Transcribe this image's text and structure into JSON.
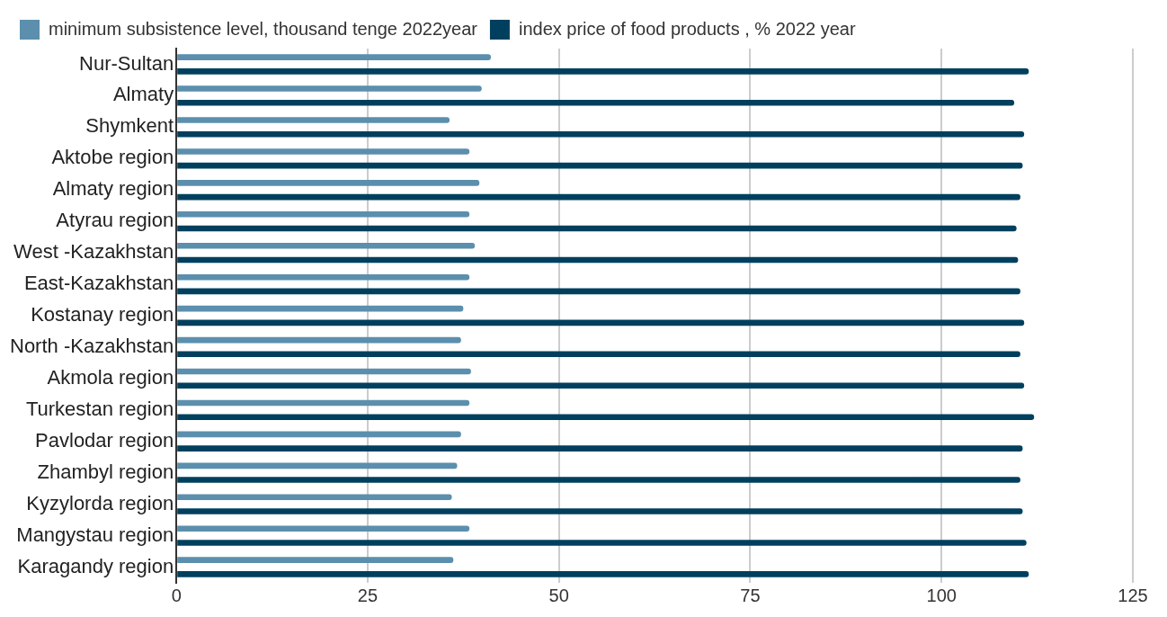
{
  "chart_data": {
    "type": "bar",
    "orientation": "horizontal",
    "categories": [
      "Nur-Sultan",
      "Almaty",
      "Shymkent",
      "Aktobe region",
      "Almaty region",
      "Atyrau region",
      "West -Kazakhstan",
      "East-Kazakhstan",
      "Kostanay region",
      "North -Kazakhstan",
      "Akmola region",
      "Turkestan region",
      "Pavlodar region",
      "Zhambyl region",
      "Kyzylorda region",
      "Mangystau region",
      "Karagandy region"
    ],
    "series": [
      {
        "name": "minimum subsistence level, thousand tenge 2022year",
        "color": "#5b8fad",
        "values": [
          41.1,
          39.9,
          35.7,
          38.3,
          39.6,
          38.3,
          39.0,
          38.3,
          37.5,
          37.2,
          38.5,
          38.3,
          37.2,
          36.7,
          36.0,
          38.3,
          36.2
        ]
      },
      {
        "name": "index price of food products , % 2022 year",
        "color": "#00405e",
        "values": [
          111.4,
          109.5,
          110.8,
          110.6,
          110.3,
          109.8,
          110.0,
          110.3,
          110.8,
          110.3,
          110.8,
          112.1,
          110.6,
          110.3,
          110.6,
          111.1,
          111.4
        ]
      }
    ],
    "xlim": [
      0,
      125
    ],
    "xticks": [
      0,
      25,
      50,
      75,
      100,
      125
    ],
    "grid": "x",
    "legend": "top"
  }
}
